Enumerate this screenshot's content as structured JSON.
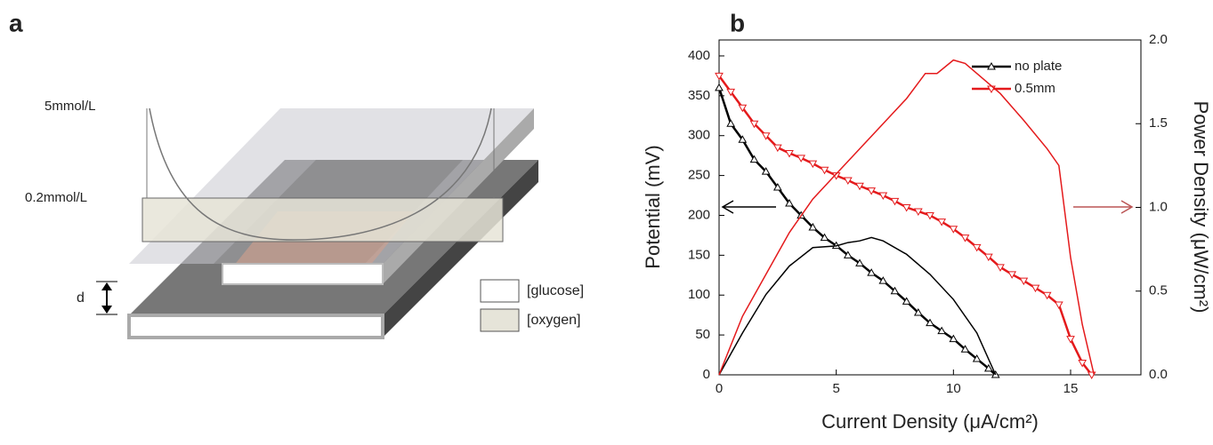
{
  "panel_a": {
    "label": "a",
    "top_level": "5mmol/L",
    "bottom_level": "0.2mmol/L",
    "gap": "d",
    "legend": [
      "[glucose]",
      "[oxygen]"
    ]
  },
  "chart_data": {
    "type": "line",
    "label": "b",
    "x_label": "Current Density (μA/cm²)",
    "y_label": "Potential (mV)",
    "y2_label": "Power Density (μW/cm²)",
    "xlim": [
      0,
      18
    ],
    "xticks": [
      0,
      5,
      10,
      15
    ],
    "ylim": [
      0,
      420
    ],
    "yticks": [
      0,
      50,
      100,
      150,
      200,
      250,
      300,
      350,
      400
    ],
    "y2lim": [
      0,
      2
    ],
    "y2ticks": [
      {
        "value": 0,
        "label": "0.0"
      },
      0.5,
      {
        "value": 1,
        "label": "1.0"
      },
      1.5,
      {
        "value": 2,
        "label": "2.0"
      }
    ],
    "legend": "upper right",
    "series": [
      {
        "name": "no plate",
        "color": "#000000",
        "marker": "triangle-up",
        "x": [
          0,
          0.5,
          1,
          1.5,
          2,
          2.5,
          3,
          3.5,
          4,
          4.5,
          5,
          5.5,
          6,
          6.5,
          7,
          7.5,
          8,
          8.5,
          9,
          9.5,
          10,
          10.5,
          11,
          11.5,
          11.8
        ],
        "values": [
          360,
          315,
          295,
          270,
          255,
          235,
          215,
          200,
          185,
          172,
          162,
          150,
          140,
          128,
          118,
          105,
          92,
          78,
          65,
          55,
          45,
          32,
          20,
          8,
          0
        ]
      },
      {
        "name": "0.5mm",
        "color": "#e41a1c",
        "marker": "triangle-down",
        "x": [
          0,
          0.5,
          1,
          1.5,
          2,
          2.5,
          3,
          3.5,
          4,
          4.5,
          5,
          5.5,
          6,
          6.5,
          7,
          7.5,
          8,
          8.5,
          9,
          9.5,
          10,
          10.5,
          11,
          11.5,
          12,
          12.5,
          13,
          13.5,
          14,
          14.5,
          15,
          15.5,
          15.9
        ],
        "values": [
          375,
          355,
          335,
          315,
          300,
          285,
          278,
          272,
          265,
          257,
          250,
          244,
          237,
          231,
          225,
          218,
          210,
          205,
          200,
          192,
          183,
          172,
          160,
          148,
          135,
          126,
          118,
          109,
          100,
          88,
          45,
          15,
          0
        ]
      },
      {
        "color": "#000000",
        "axis": "y2",
        "x": [
          0,
          1,
          2,
          3,
          4,
          5,
          5.5,
          6,
          6.5,
          7,
          8,
          9,
          10,
          11,
          11.8
        ],
        "values": [
          0,
          0.25,
          0.48,
          0.65,
          0.76,
          0.77,
          0.79,
          0.8,
          0.82,
          0.8,
          0.72,
          0.6,
          0.45,
          0.25,
          0
        ]
      },
      {
        "color": "#e41a1c",
        "axis": "y2",
        "x": [
          0,
          1,
          2,
          3,
          4,
          5,
          6,
          7,
          8,
          8.8,
          9.3,
          10,
          10.5,
          11,
          12,
          13,
          14,
          14.5,
          15,
          15.5,
          16
        ],
        "values": [
          0,
          0.35,
          0.6,
          0.85,
          1.05,
          1.2,
          1.35,
          1.5,
          1.65,
          1.8,
          1.8,
          1.88,
          1.86,
          1.8,
          1.68,
          1.52,
          1.35,
          1.25,
          0.7,
          0.3,
          0
        ]
      }
    ]
  }
}
